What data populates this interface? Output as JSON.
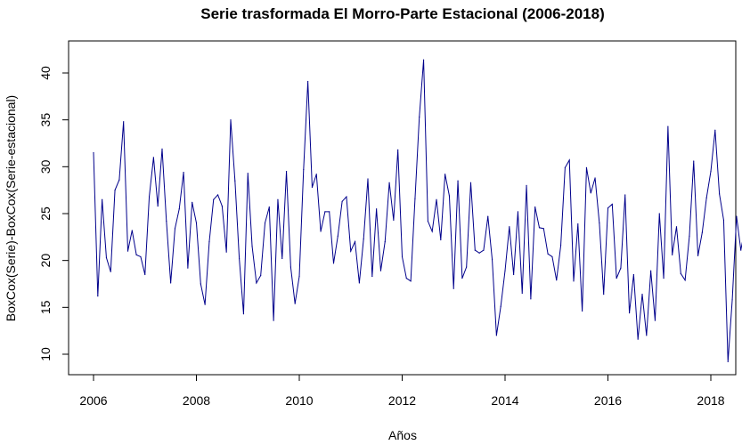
{
  "chart_data": {
    "type": "line",
    "title": "Serie trasformada El Morro-Parte Estacional (2006-2018)",
    "xlabel": "Años",
    "ylabel": "BoxCox(Serie)-BoxCox(Serie-estacional)",
    "xlim": [
      2006,
      2018.5
    ],
    "ylim": [
      9,
      42
    ],
    "xticks": [
      2006,
      2008,
      2010,
      2012,
      2014,
      2016,
      2018
    ],
    "yticks": [
      10,
      15,
      20,
      25,
      30,
      35,
      40
    ],
    "grid": false,
    "line_color": "#00008b",
    "start": 2006,
    "frequency": 12,
    "values": [
      31.5,
      16.2,
      26.5,
      20.3,
      18.8,
      27.5,
      28.6,
      34.8,
      21.0,
      23.2,
      20.6,
      20.4,
      18.5,
      26.8,
      31.0,
      25.8,
      31.9,
      24.2,
      17.6,
      23.4,
      25.5,
      29.4,
      19.2,
      26.2,
      24.0,
      17.5,
      15.3,
      22.0,
      26.5,
      27.0,
      25.8,
      20.9,
      35.0,
      28.5,
      20.2,
      14.3,
      29.3,
      21.5,
      17.6,
      18.4,
      24.0,
      25.7,
      13.6,
      26.5,
      20.2,
      29.5,
      19.3,
      15.4,
      18.3,
      29.7,
      39.1,
      27.8,
      29.2,
      23.1,
      25.2,
      25.2,
      19.7,
      22.6,
      26.3,
      26.8,
      21.0,
      22.0,
      17.6,
      22.3,
      28.7,
      18.3,
      25.5,
      18.9,
      22.0,
      28.3,
      24.3,
      31.8,
      20.4,
      18.1,
      17.8,
      26.6,
      35.3,
      41.4,
      24.2,
      23.1,
      26.5,
      22.2,
      29.2,
      26.9,
      17.0,
      28.5,
      18.1,
      19.3,
      28.3,
      21.1,
      20.8,
      21.1,
      24.7,
      20.1,
      12.0,
      15.1,
      18.9,
      23.6,
      18.5,
      25.2,
      16.5,
      28.0,
      15.9,
      25.7,
      23.5,
      23.4,
      20.7,
      20.4,
      17.9,
      21.6,
      29.9,
      30.7,
      17.8,
      23.9,
      14.6,
      29.9,
      27.2,
      28.8,
      24.0,
      16.4,
      25.6,
      26.0,
      18.1,
      19.2,
      27.0,
      14.4,
      18.5,
      11.6,
      16.4,
      12.0,
      18.9,
      13.6,
      25.0,
      18.1,
      34.3,
      20.6,
      23.6,
      18.6,
      17.9,
      22.6,
      30.6,
      20.5,
      23.0,
      26.7,
      29.5,
      33.9,
      27.1,
      24.3,
      9.2,
      15.8,
      24.7,
      21.1,
      23.5
    ]
  }
}
